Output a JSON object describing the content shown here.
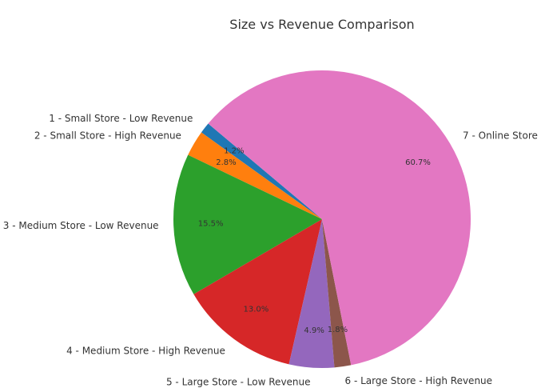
{
  "chart_data": {
    "type": "pie",
    "title": "Size vs Revenue Comparison",
    "categories": [
      "1 - Small Store - Low Revenue",
      "2 - Small Store - High Revenue",
      "3 - Medium Store - Low Revenue",
      "4 - Medium Store - High Revenue",
      "5 - Large Store - Low Revenue",
      "6 - Large Store - High Revenue",
      "7 - Online Store"
    ],
    "values": [
      1.2,
      2.8,
      15.5,
      13.0,
      4.9,
      1.8,
      60.7
    ],
    "value_labels": [
      "1.2%",
      "2.8%",
      "15.5%",
      "13.0%",
      "4.9%",
      "1.8%",
      "60.7%"
    ],
    "colors": [
      "#1f77b4",
      "#ff7f0e",
      "#2ca02c",
      "#d62728",
      "#9467bd",
      "#8c564b",
      "#e377c2"
    ],
    "start_angle_deg": 140,
    "direction": "counterclockwise",
    "legend": "none"
  }
}
